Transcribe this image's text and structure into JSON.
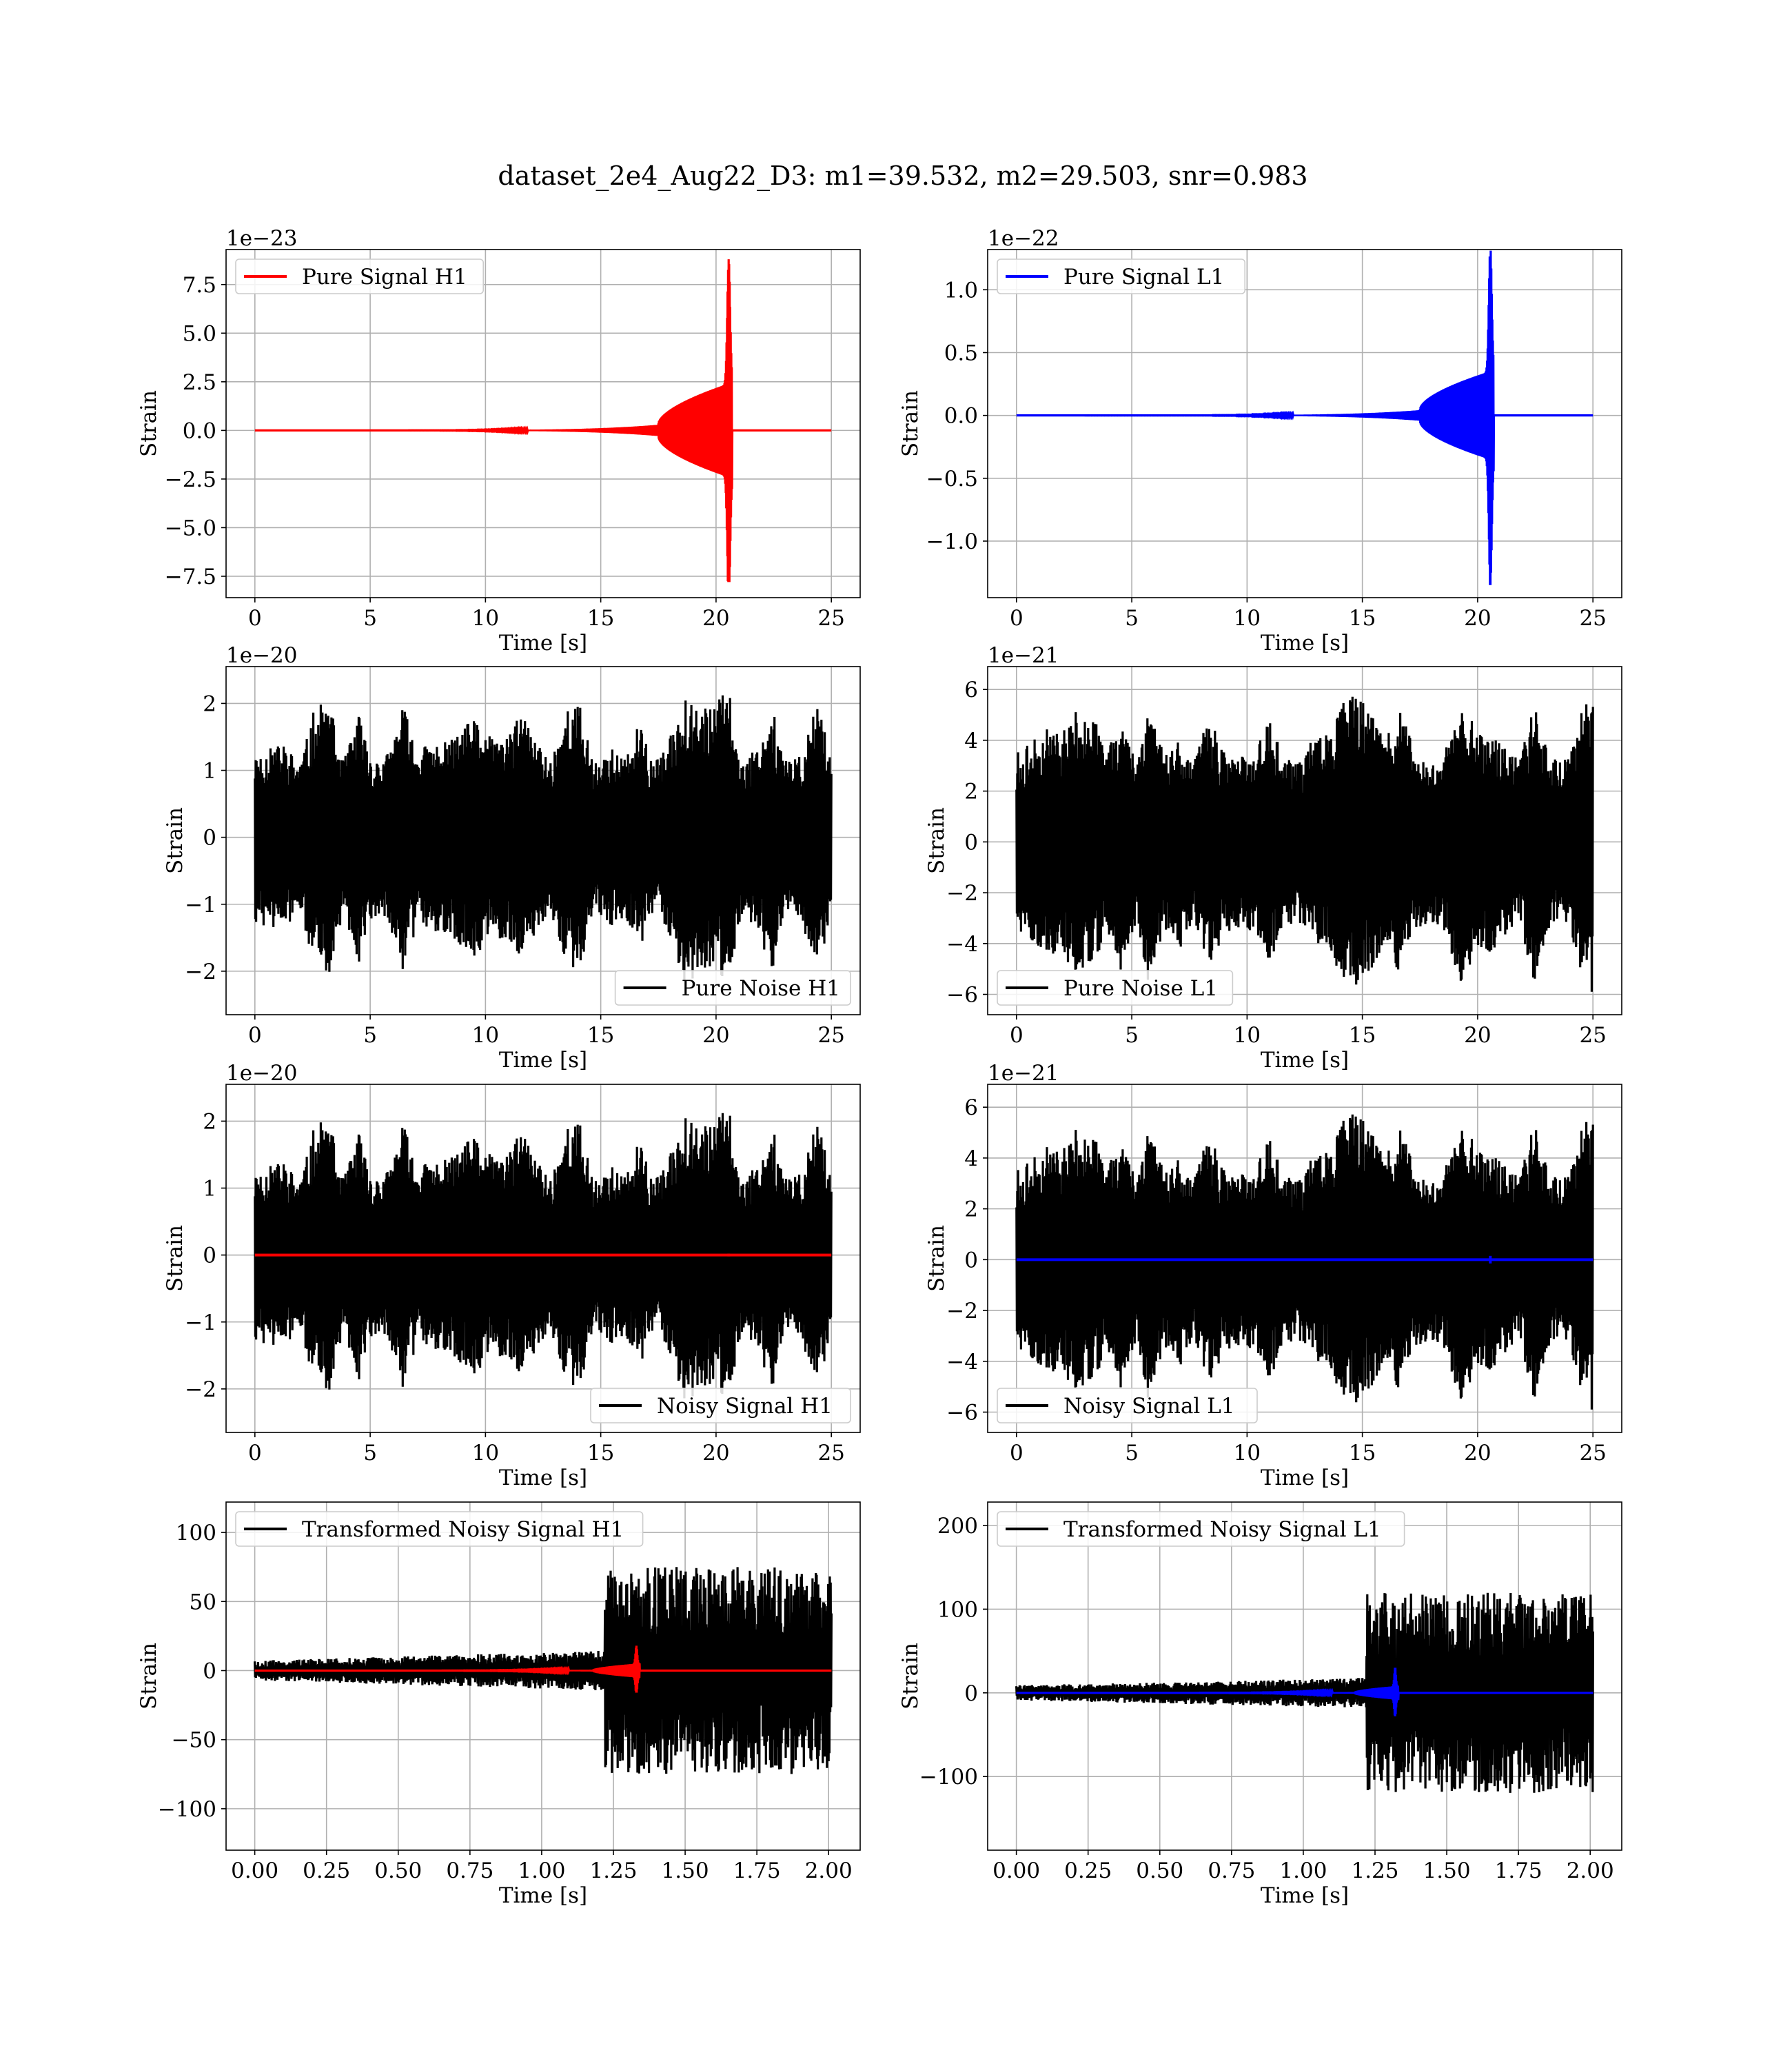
{
  "figure": {
    "title": "dataset_2e4_Aug22_D3: m1=39.532, m2=29.503, snr=0.983"
  },
  "chart_data": [
    {
      "id": "pure-signal-h1",
      "type": "line",
      "legend": "Pure Signal H1",
      "legend_loc": "upper-left",
      "xlabel": "Time [s]",
      "ylabel": "Strain",
      "offset_text": "1e−23",
      "xlim": [
        -1.25,
        26.25
      ],
      "ylim": [
        -8.6,
        9.3
      ],
      "xticks": [
        0,
        5,
        10,
        15,
        20,
        25
      ],
      "xtick_labels": [
        "0",
        "5",
        "10",
        "15",
        "20",
        "25"
      ],
      "yticks": [
        -7.5,
        -5.0,
        -2.5,
        0.0,
        2.5,
        5.0,
        7.5
      ],
      "ytick_labels": [
        "−7.5",
        "−5.0",
        "−2.5",
        "0.0",
        "2.5",
        "5.0",
        "7.5"
      ],
      "grid": true,
      "series": [
        {
          "name": "Pure Signal H1",
          "color": "#ff0000",
          "kind": "chirp",
          "t_start": 0,
          "t_end": 25,
          "t_merger": 20.55,
          "peak_max": 8.8,
          "peak_min": -7.8,
          "plateau": 2.4,
          "onset": 17.5
        }
      ]
    },
    {
      "id": "pure-signal-l1",
      "type": "line",
      "legend": "Pure Signal L1",
      "legend_loc": "upper-left",
      "xlabel": "Time [s]",
      "ylabel": "Strain",
      "offset_text": "1e−22",
      "xlim": [
        -1.25,
        26.25
      ],
      "ylim": [
        -1.45,
        1.32
      ],
      "xticks": [
        0,
        5,
        10,
        15,
        20,
        25
      ],
      "xtick_labels": [
        "0",
        "5",
        "10",
        "15",
        "20",
        "25"
      ],
      "yticks": [
        -1.0,
        -0.5,
        0.0,
        0.5,
        1.0
      ],
      "ytick_labels": [
        "−1.0",
        "−0.5",
        "0.0",
        "0.5",
        "1.0"
      ],
      "grid": true,
      "series": [
        {
          "name": "Pure Signal L1",
          "color": "#0000ff",
          "kind": "chirp",
          "t_start": 0,
          "t_end": 25,
          "t_merger": 20.55,
          "peak_max": 1.25,
          "peak_min": -1.35,
          "plateau": 0.35,
          "onset": 17.5
        }
      ]
    },
    {
      "id": "pure-noise-h1",
      "type": "line",
      "legend": "Pure Noise H1",
      "legend_loc": "lower-right",
      "xlabel": "Time [s]",
      "ylabel": "Strain",
      "offset_text": "1e−20",
      "xlim": [
        -1.25,
        26.25
      ],
      "ylim": [
        -2.65,
        2.55
      ],
      "xticks": [
        0,
        5,
        10,
        15,
        20,
        25
      ],
      "xtick_labels": [
        "0",
        "5",
        "10",
        "15",
        "20",
        "25"
      ],
      "yticks": [
        -2,
        -1,
        0,
        1,
        2
      ],
      "ytick_labels": [
        "−2",
        "−1",
        "0",
        "1",
        "2"
      ],
      "grid": true,
      "series": [
        {
          "name": "Pure Noise H1",
          "color": "#000000",
          "kind": "noise",
          "t_start": 0,
          "t_end": 25,
          "amp_min": 1.1,
          "amp_max": 2.35,
          "seed": 11
        }
      ]
    },
    {
      "id": "pure-noise-l1",
      "type": "line",
      "legend": "Pure Noise L1",
      "legend_loc": "lower-left",
      "xlabel": "Time [s]",
      "ylabel": "Strain",
      "offset_text": "1e−21",
      "xlim": [
        -1.25,
        26.25
      ],
      "ylim": [
        -6.8,
        6.9
      ],
      "xticks": [
        0,
        5,
        10,
        15,
        20,
        25
      ],
      "xtick_labels": [
        "0",
        "5",
        "10",
        "15",
        "20",
        "25"
      ],
      "yticks": [
        -6,
        -4,
        -2,
        0,
        2,
        4,
        6
      ],
      "ytick_labels": [
        "−6",
        "−4",
        "−2",
        "0",
        "2",
        "4",
        "6"
      ],
      "grid": true,
      "series": [
        {
          "name": "Pure Noise L1",
          "color": "#000000",
          "kind": "noise",
          "t_start": 0,
          "t_end": 25,
          "amp_min": 3.0,
          "amp_max": 6.3,
          "seed": 23
        }
      ]
    },
    {
      "id": "noisy-signal-h1",
      "type": "line",
      "legend": "Noisy Signal H1",
      "legend_loc": "lower-right",
      "xlabel": "Time [s]",
      "ylabel": "Strain",
      "offset_text": "1e−20",
      "xlim": [
        -1.25,
        26.25
      ],
      "ylim": [
        -2.65,
        2.55
      ],
      "xticks": [
        0,
        5,
        10,
        15,
        20,
        25
      ],
      "xtick_labels": [
        "0",
        "5",
        "10",
        "15",
        "20",
        "25"
      ],
      "yticks": [
        -2,
        -1,
        0,
        1,
        2
      ],
      "ytick_labels": [
        "−2",
        "−1",
        "0",
        "1",
        "2"
      ],
      "grid": true,
      "series": [
        {
          "name": "Noisy Signal H1",
          "color": "#000000",
          "kind": "noise",
          "t_start": 0,
          "t_end": 25,
          "amp_min": 1.1,
          "amp_max": 2.35,
          "seed": 11
        },
        {
          "color": "#ff0000",
          "kind": "flat",
          "t_start": 0,
          "t_end": 25,
          "bump_at": 20.55,
          "bump_amp": 0.02
        }
      ]
    },
    {
      "id": "noisy-signal-l1",
      "type": "line",
      "legend": "Noisy Signal L1",
      "legend_loc": "lower-left",
      "xlabel": "Time [s]",
      "ylabel": "Strain",
      "offset_text": "1e−21",
      "xlim": [
        -1.25,
        26.25
      ],
      "ylim": [
        -6.8,
        6.9
      ],
      "xticks": [
        0,
        5,
        10,
        15,
        20,
        25
      ],
      "xtick_labels": [
        "0",
        "5",
        "10",
        "15",
        "20",
        "25"
      ],
      "yticks": [
        -6,
        -4,
        -2,
        0,
        2,
        4,
        6
      ],
      "ytick_labels": [
        "−6",
        "−4",
        "−2",
        "0",
        "2",
        "4",
        "6"
      ],
      "grid": true,
      "series": [
        {
          "name": "Noisy Signal L1",
          "color": "#000000",
          "kind": "noise",
          "t_start": 0,
          "t_end": 25,
          "amp_min": 3.0,
          "amp_max": 6.3,
          "seed": 23
        },
        {
          "color": "#0000ff",
          "kind": "flat",
          "t_start": 0,
          "t_end": 25,
          "bump_at": 20.55,
          "bump_amp": 0.15
        }
      ]
    },
    {
      "id": "transformed-noisy-signal-h1",
      "type": "line",
      "legend": "Transformed Noisy Signal H1",
      "legend_loc": "upper-left",
      "xlabel": "Time [s]",
      "ylabel": "Strain",
      "offset_text": "",
      "xlim": [
        -0.1,
        2.11
      ],
      "ylim": [
        -130,
        122
      ],
      "xticks": [
        0.0,
        0.25,
        0.5,
        0.75,
        1.0,
        1.25,
        1.5,
        1.75,
        2.0
      ],
      "xtick_labels": [
        "0.00",
        "0.25",
        "0.50",
        "0.75",
        "1.00",
        "1.25",
        "1.50",
        "1.75",
        "2.00"
      ],
      "yticks": [
        -100,
        -50,
        0,
        50,
        100
      ],
      "ytick_labels": [
        "−100",
        "−50",
        "0",
        "50",
        "100"
      ],
      "grid": true,
      "series": [
        {
          "name": "Transformed Noisy Signal H1",
          "color": "#000000",
          "kind": "whitened",
          "t_start": 0,
          "t_end": 2.01,
          "step_at": 1.22,
          "amp_low": 12,
          "amp_high": 75,
          "seed": 5
        },
        {
          "color": "#ff0000",
          "kind": "chirp",
          "t_start": 0,
          "t_end": 2.01,
          "t_merger": 1.33,
          "peak_max": 18,
          "peak_min": -16,
          "plateau": 5,
          "onset": 1.18
        }
      ]
    },
    {
      "id": "transformed-noisy-signal-l1",
      "type": "line",
      "legend": "Transformed Noisy Signal L1",
      "legend_loc": "upper-left",
      "xlabel": "Time [s]",
      "ylabel": "Strain",
      "offset_text": "",
      "xlim": [
        -0.1,
        2.11
      ],
      "ylim": [
        -188,
        228
      ],
      "xticks": [
        0.0,
        0.25,
        0.5,
        0.75,
        1.0,
        1.25,
        1.5,
        1.75,
        2.0
      ],
      "xtick_labels": [
        "0.00",
        "0.25",
        "0.50",
        "0.75",
        "1.00",
        "1.25",
        "1.50",
        "1.75",
        "2.00"
      ],
      "yticks": [
        -100,
        0,
        100,
        200
      ],
      "ytick_labels": [
        "−100",
        "0",
        "100",
        "200"
      ],
      "grid": true,
      "series": [
        {
          "name": "Transformed Noisy Signal L1",
          "color": "#000000",
          "kind": "whitened",
          "t_start": 0,
          "t_end": 2.01,
          "step_at": 1.22,
          "amp_low": 15,
          "amp_high": 120,
          "seed": 9
        },
        {
          "color": "#0000ff",
          "kind": "chirp",
          "t_start": 0,
          "t_end": 2.01,
          "t_merger": 1.32,
          "peak_max": 30,
          "peak_min": -28,
          "plateau": 8,
          "onset": 1.18
        }
      ]
    }
  ]
}
